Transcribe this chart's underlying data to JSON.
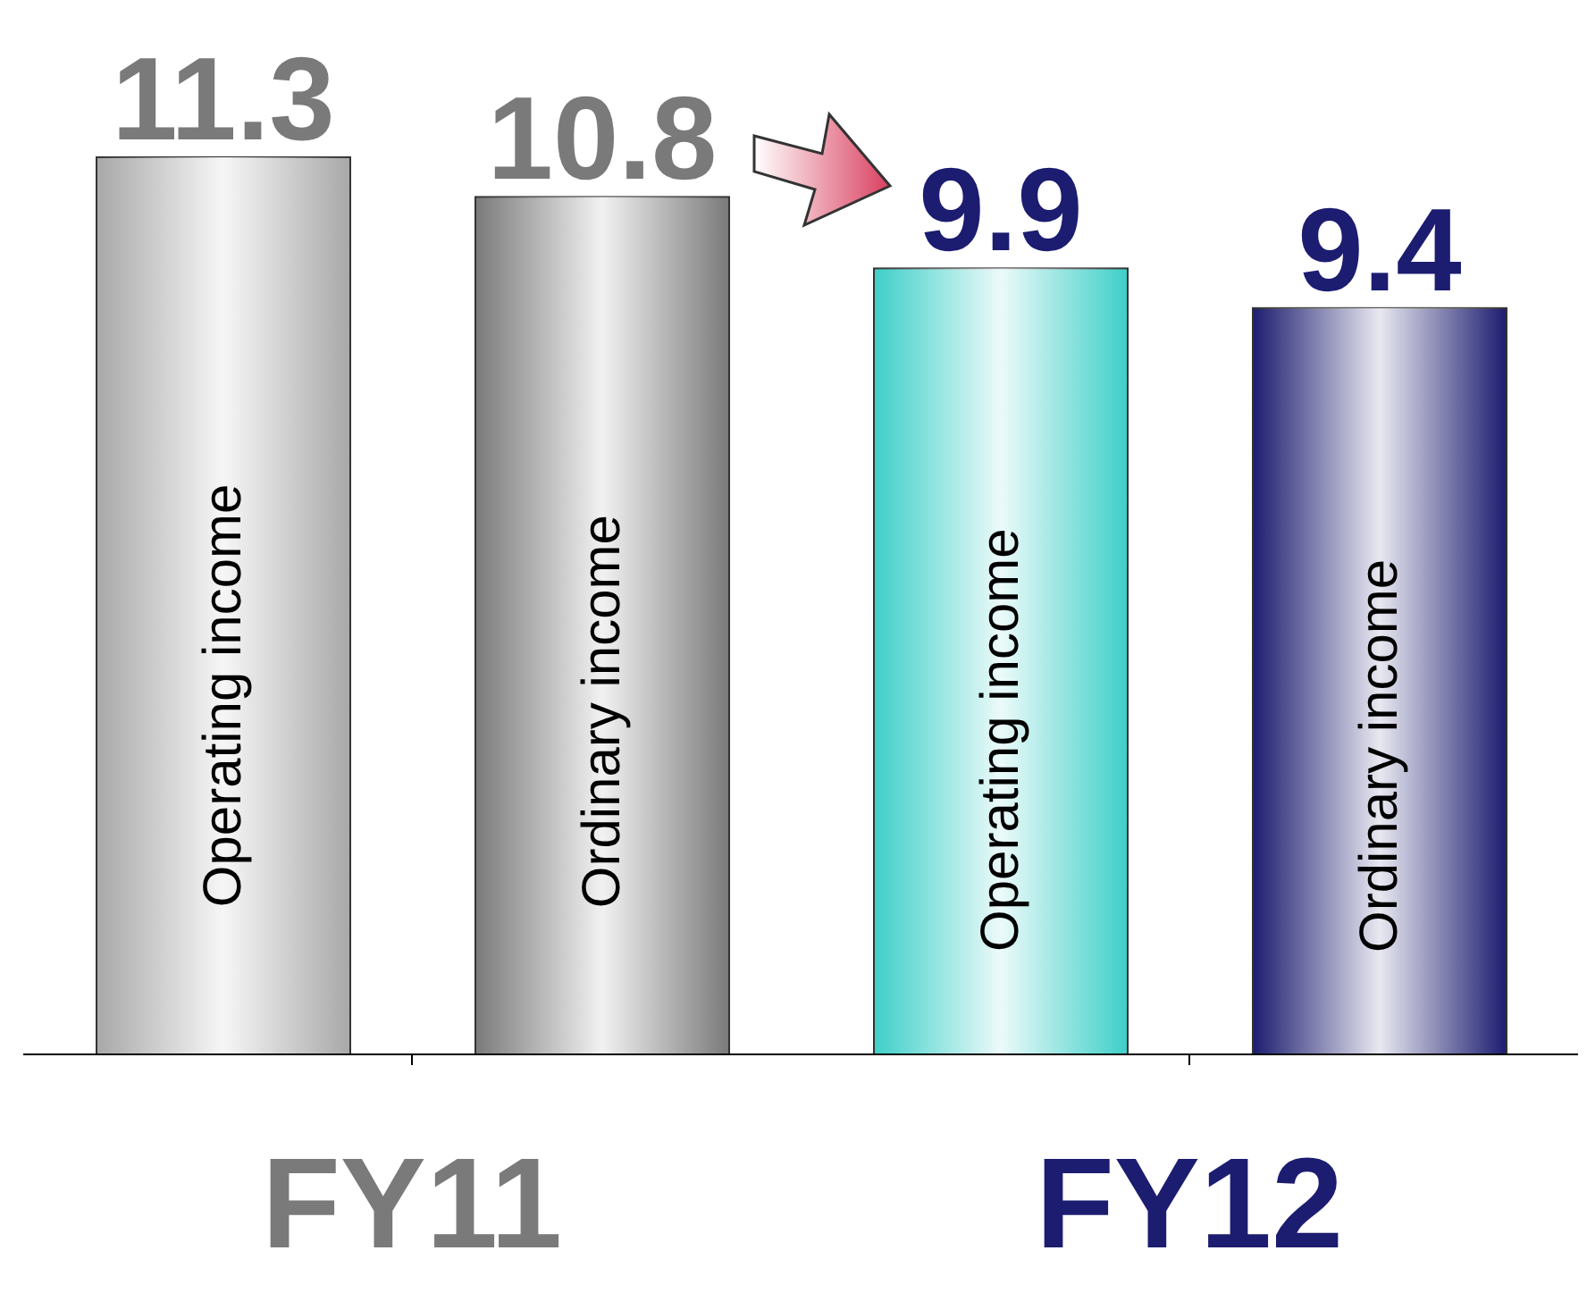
{
  "chart_data": {
    "type": "bar",
    "categories": [
      "FY11",
      "FY12"
    ],
    "series": [
      {
        "name": "Operating income",
        "colors": [
          "#a8a8a8",
          "#3ecfc8"
        ],
        "values": [
          11.3,
          9.9
        ]
      },
      {
        "name": "Ordinary income",
        "colors": [
          "#7a7a7a",
          "#1c1c70"
        ],
        "values": [
          10.8,
          9.4
        ]
      }
    ],
    "data_labels": true,
    "grid": false,
    "legend": false
  }
}
